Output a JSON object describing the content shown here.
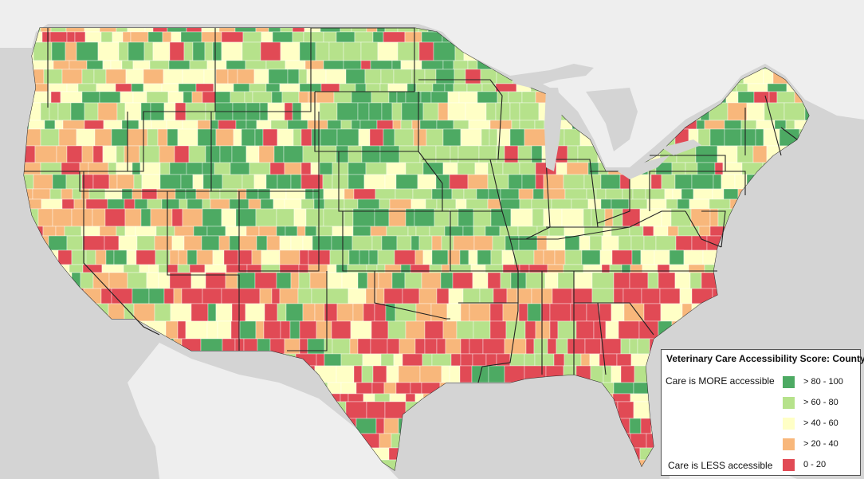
{
  "legend": {
    "title": "Veterinary Care Accessibility Score: County",
    "more_label": "Care is MORE accessible",
    "less_label": "Care is LESS accessible",
    "classes": [
      {
        "label": "> 80 - 100",
        "color": "#4daa63"
      },
      {
        "label": "> 60 - 80",
        "color": "#b6e28b"
      },
      {
        "label": "> 40 - 60",
        "color": "#ffffc6"
      },
      {
        "label": "> 20 - 40",
        "color": "#f8b77b"
      },
      {
        "label": "0 - 20",
        "color": "#e14a55"
      }
    ]
  },
  "colors": {
    "background": "#d4d4d4",
    "land_outside": "#eeeeee",
    "water": "#d4d4d4",
    "county_border": "#ffffff",
    "state_border": "#222222"
  }
}
